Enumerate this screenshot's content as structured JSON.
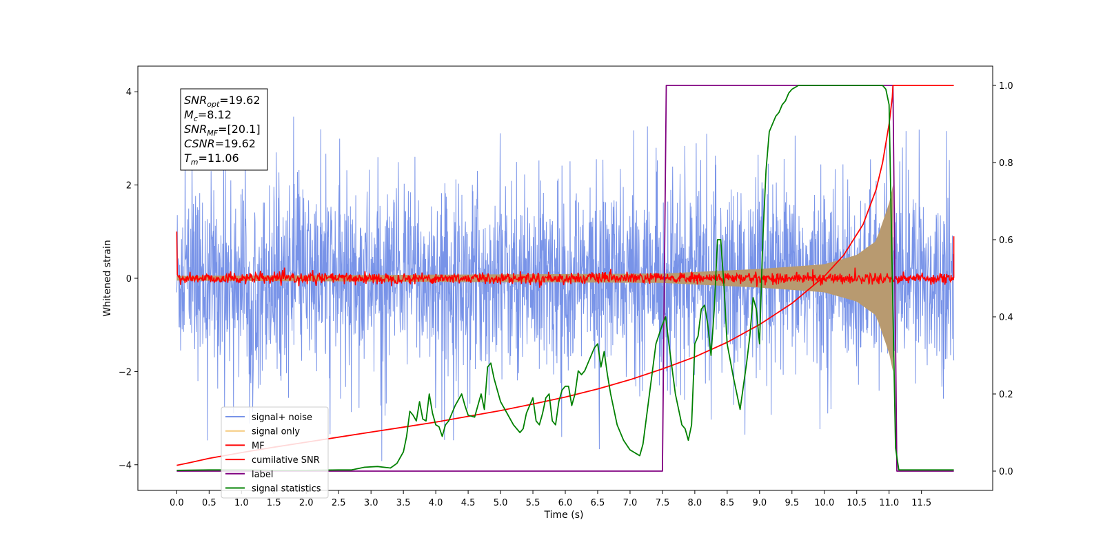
{
  "chart_data": {
    "type": "line",
    "xlabel": "Time (s)",
    "ylabel": "Whitened strain",
    "xlim": [
      -0.6,
      12.6
    ],
    "ylim": [
      -4.55,
      4.55
    ],
    "y2lim": [
      -0.05,
      1.05
    ],
    "xticks": [
      "0.0",
      "0.5",
      "1.0",
      "1.5",
      "2.0",
      "2.5",
      "3.0",
      "3.5",
      "4.0",
      "4.5",
      "5.0",
      "5.5",
      "6.0",
      "6.5",
      "7.0",
      "7.5",
      "8.0",
      "8.5",
      "9.0",
      "9.5",
      "10.0",
      "10.5",
      "11.0",
      "11.5"
    ],
    "xtick_values": [
      0,
      0.5,
      1,
      1.5,
      2,
      2.5,
      3,
      3.5,
      4,
      4.5,
      5,
      5.5,
      6,
      6.5,
      7,
      7.5,
      8,
      8.5,
      9,
      9.5,
      10,
      10.5,
      11,
      11.5
    ],
    "yticks": [
      "4",
      "2",
      "0",
      "−2",
      "−4"
    ],
    "ytick_values": [
      4,
      2,
      0,
      -2,
      -4
    ],
    "y2ticks": [
      "1.0",
      "0.8",
      "0.6",
      "0.4",
      "0.2",
      "0.0"
    ],
    "y2tick_values": [
      1.0,
      0.8,
      0.6,
      0.4,
      0.2,
      0.0
    ],
    "grid": false,
    "legend_position": "lower-left",
    "annotation": {
      "lines": [
        {
          "base": "SNR",
          "sub": "opt",
          "value": "=19.62"
        },
        {
          "base": "M",
          "sub": "c",
          "value": "=8.12"
        },
        {
          "base": "SNR",
          "sub": "MF",
          "value": "=[20.1]"
        },
        {
          "base": "CSNR",
          "sub": "",
          "value": "=19.62"
        },
        {
          "base": "T",
          "sub": "m",
          "value": "=11.06"
        }
      ]
    },
    "series": [
      {
        "name": "signal+ noise",
        "color": "#7893e8",
        "axis": "left",
        "kind": "noise-band",
        "x_range": [
          0,
          12.0
        ],
        "typical_amplitude": 1.3,
        "peak_amplitude": 4.1
      },
      {
        "name": "signal only",
        "color": "#f5c97a",
        "axis": "left",
        "kind": "chirp-envelope",
        "x_range": [
          0,
          11.06
        ],
        "envelope": [
          [
            0,
            0.05
          ],
          [
            7.5,
            0.1
          ],
          [
            9,
            0.2
          ],
          [
            10,
            0.3
          ],
          [
            10.5,
            0.5
          ],
          [
            10.8,
            0.8
          ],
          [
            11.0,
            1.6
          ],
          [
            11.06,
            2.0
          ]
        ]
      },
      {
        "name": "MF",
        "color": "#ff0000",
        "axis": "left",
        "kind": "mf-noise",
        "x_range": [
          0,
          12.0
        ],
        "typical_amplitude": 0.06,
        "start_value": 1.0,
        "end_value": 0.9
      },
      {
        "name": "cumilative SNR",
        "color": "#ff0000",
        "axis": "right",
        "x": [
          0,
          0.2,
          0.5,
          1,
          1.5,
          2,
          2.5,
          3,
          3.5,
          4,
          4.5,
          5,
          5.5,
          6,
          6.5,
          7,
          7.5,
          8,
          8.5,
          9,
          9.5,
          10,
          10.3,
          10.6,
          10.8,
          10.9,
          11.0,
          11.05,
          11.06,
          12.0
        ],
        "y": [
          0.015,
          0.022,
          0.033,
          0.048,
          0.062,
          0.075,
          0.088,
          0.101,
          0.114,
          0.127,
          0.142,
          0.157,
          0.174,
          0.192,
          0.213,
          0.237,
          0.265,
          0.296,
          0.334,
          0.38,
          0.435,
          0.505,
          0.56,
          0.64,
          0.73,
          0.8,
          0.9,
          0.97,
          1.0,
          1.0
        ]
      },
      {
        "name": "label",
        "color": "#800080",
        "axis": "right",
        "x": [
          0,
          7.5,
          7.56,
          11.06,
          11.12,
          12.0
        ],
        "y": [
          0,
          0,
          1,
          1,
          0,
          0
        ]
      },
      {
        "name": "signal statistics",
        "color": "#008000",
        "axis": "right",
        "x": [
          0,
          0.5,
          1,
          1.5,
          2,
          2.5,
          2.7,
          2.9,
          3.1,
          3.3,
          3.4,
          3.5,
          3.55,
          3.6,
          3.65,
          3.7,
          3.75,
          3.8,
          3.85,
          3.9,
          3.95,
          4.0,
          4.05,
          4.1,
          4.15,
          4.2,
          4.3,
          4.4,
          4.45,
          4.5,
          4.6,
          4.65,
          4.7,
          4.75,
          4.8,
          4.85,
          4.9,
          5.0,
          5.1,
          5.2,
          5.3,
          5.35,
          5.4,
          5.45,
          5.5,
          5.55,
          5.6,
          5.65,
          5.7,
          5.75,
          5.8,
          5.85,
          5.9,
          5.95,
          6.0,
          6.05,
          6.1,
          6.15,
          6.2,
          6.25,
          6.3,
          6.35,
          6.4,
          6.45,
          6.5,
          6.55,
          6.6,
          6.65,
          6.7,
          6.8,
          6.9,
          7.0,
          7.05,
          7.1,
          7.15,
          7.2,
          7.3,
          7.4,
          7.5,
          7.55,
          7.6,
          7.7,
          7.8,
          7.85,
          7.9,
          7.95,
          8.0,
          8.05,
          8.1,
          8.15,
          8.2,
          8.25,
          8.3,
          8.35,
          8.4,
          8.45,
          8.5,
          8.6,
          8.7,
          8.8,
          8.85,
          8.9,
          8.95,
          9.0,
          9.05,
          9.1,
          9.15,
          9.2,
          9.25,
          9.3,
          9.35,
          9.4,
          9.45,
          9.5,
          9.6,
          9.7,
          9.8,
          9.9,
          10.0,
          10.2,
          10.4,
          10.6,
          10.8,
          10.9,
          10.95,
          11.0,
          11.05,
          11.1,
          11.15,
          11.2,
          12.0
        ],
        "y": [
          0.002,
          0.003,
          0.003,
          0.002,
          0.002,
          0.003,
          0.003,
          0.01,
          0.012,
          0.008,
          0.02,
          0.05,
          0.09,
          0.155,
          0.145,
          0.13,
          0.18,
          0.135,
          0.13,
          0.2,
          0.15,
          0.12,
          0.115,
          0.09,
          0.12,
          0.13,
          0.17,
          0.2,
          0.17,
          0.145,
          0.14,
          0.17,
          0.2,
          0.16,
          0.27,
          0.28,
          0.24,
          0.18,
          0.15,
          0.12,
          0.1,
          0.11,
          0.15,
          0.17,
          0.19,
          0.13,
          0.12,
          0.15,
          0.19,
          0.2,
          0.13,
          0.12,
          0.18,
          0.21,
          0.22,
          0.22,
          0.17,
          0.2,
          0.26,
          0.25,
          0.26,
          0.28,
          0.3,
          0.32,
          0.33,
          0.27,
          0.31,
          0.25,
          0.2,
          0.12,
          0.08,
          0.055,
          0.05,
          0.045,
          0.04,
          0.07,
          0.2,
          0.33,
          0.38,
          0.4,
          0.33,
          0.2,
          0.12,
          0.11,
          0.08,
          0.12,
          0.33,
          0.35,
          0.42,
          0.43,
          0.38,
          0.3,
          0.42,
          0.6,
          0.6,
          0.48,
          0.33,
          0.24,
          0.16,
          0.28,
          0.35,
          0.45,
          0.42,
          0.33,
          0.6,
          0.78,
          0.88,
          0.9,
          0.92,
          0.93,
          0.95,
          0.96,
          0.98,
          0.99,
          1.0,
          1.0,
          1.0,
          1.0,
          1.0,
          1.0,
          1.0,
          1.0,
          1.0,
          1.0,
          0.99,
          0.95,
          0.5,
          0.06,
          0.003,
          0.003,
          0.003
        ]
      }
    ]
  }
}
